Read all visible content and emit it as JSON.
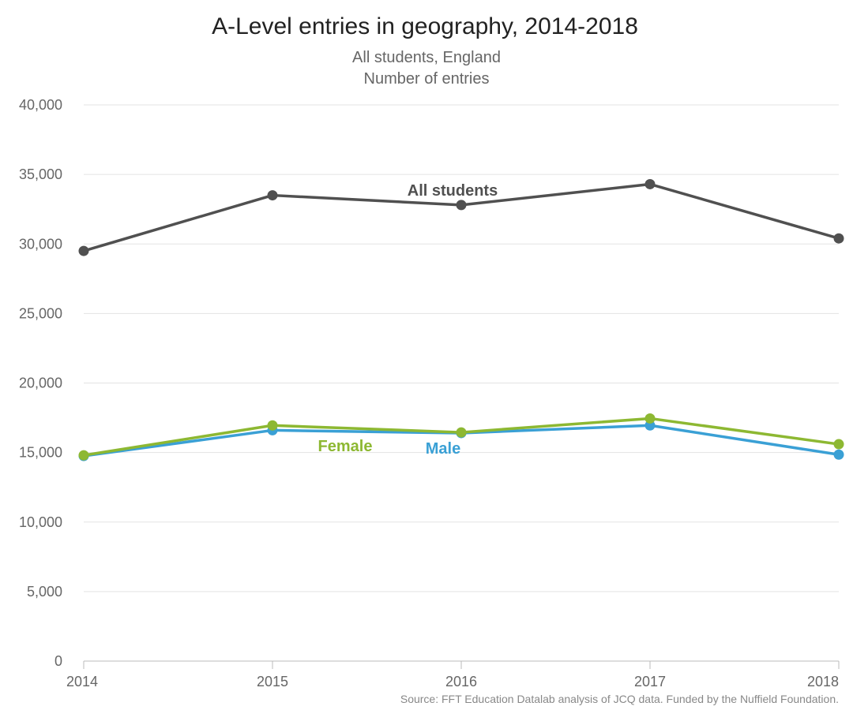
{
  "chart_data": {
    "type": "line",
    "title": "A-Level entries in geography, 2014-2018",
    "subtitle_lines": [
      "All students, England",
      "Number of entries"
    ],
    "x": [
      2014,
      2015,
      2016,
      2017,
      2018
    ],
    "x_tick_labels": [
      "2014",
      "2015",
      "2016",
      "2017",
      "2018"
    ],
    "ylim": [
      0,
      40000
    ],
    "y_ticks": [
      0,
      5000,
      10000,
      15000,
      20000,
      25000,
      30000,
      35000,
      40000
    ],
    "y_tick_labels": [
      "0",
      "5,000",
      "10,000",
      "15,000",
      "20,000",
      "25,000",
      "30,000",
      "35,000",
      "40,000"
    ],
    "grid": true,
    "series": [
      {
        "name": "All students",
        "values": [
          29500,
          33500,
          32800,
          34300,
          30400
        ],
        "color": "#505050"
      },
      {
        "name": "Female",
        "values": [
          14800,
          16950,
          16450,
          17450,
          15600
        ],
        "color": "#8db832"
      },
      {
        "name": "Male",
        "values": [
          14750,
          16600,
          16400,
          16950,
          14850
        ],
        "color": "#3aa0d5"
      }
    ],
    "source": "Source: FFT Education Datalab analysis of JCQ data. Funded by the Nuffield Foundation."
  }
}
